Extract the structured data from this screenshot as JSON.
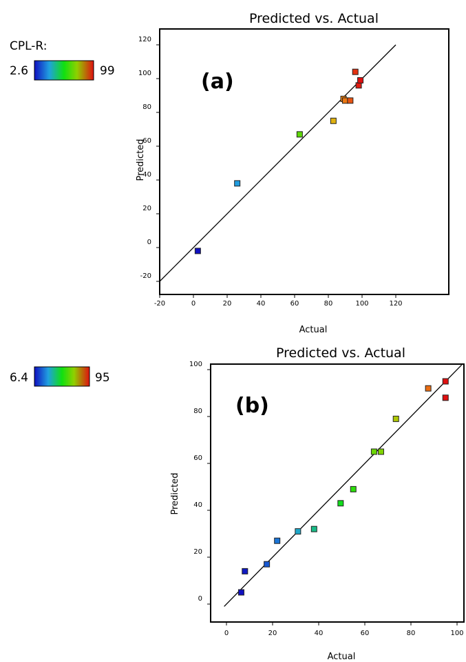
{
  "colorbars": [
    {
      "label": "CPL-R:",
      "min": "2.6",
      "max": "99"
    },
    {
      "label": "",
      "min": "6.4",
      "max": "95"
    }
  ],
  "chart_data": [
    {
      "type": "scatter",
      "title": "Predicted vs. Actual",
      "panel_label": "(a)",
      "xlabel": "Actual",
      "ylabel": "Predicted",
      "xlim": [
        -20,
        120
      ],
      "ylim": [
        -20,
        120
      ],
      "xticks": [
        "-20",
        "0",
        "20",
        "40",
        "60",
        "80",
        "100",
        "120"
      ],
      "yticks": [
        "-20",
        "0",
        "20",
        "40",
        "60",
        "80",
        "100",
        "120"
      ],
      "color_range": [
        2.6,
        99
      ],
      "reference_line": "y = x",
      "points": [
        {
          "x": 2.6,
          "y": -2
        },
        {
          "x": 26,
          "y": 38
        },
        {
          "x": 63,
          "y": 67
        },
        {
          "x": 83,
          "y": 75
        },
        {
          "x": 89,
          "y": 88
        },
        {
          "x": 90,
          "y": 87
        },
        {
          "x": 93,
          "y": 87
        },
        {
          "x": 96,
          "y": 104
        },
        {
          "x": 98,
          "y": 96
        },
        {
          "x": 99,
          "y": 99
        }
      ]
    },
    {
      "type": "scatter",
      "title": "Predicted vs. Actual",
      "panel_label": "(b)",
      "xlabel": "Actual",
      "ylabel": "Predicted",
      "xlim": [
        -1,
        103
      ],
      "ylim": [
        -3,
        102
      ],
      "xticks": [
        "0",
        "20",
        "40",
        "60",
        "80",
        "100"
      ],
      "yticks": [
        "0",
        "20",
        "40",
        "60",
        "80",
        "100"
      ],
      "color_range": [
        6.4,
        95
      ],
      "reference_line": "y = x",
      "points": [
        {
          "x": 6.4,
          "y": 5
        },
        {
          "x": 8,
          "y": 14
        },
        {
          "x": 17.5,
          "y": 17
        },
        {
          "x": 22,
          "y": 27
        },
        {
          "x": 31,
          "y": 31
        },
        {
          "x": 38,
          "y": 32
        },
        {
          "x": 49.5,
          "y": 43
        },
        {
          "x": 55,
          "y": 49
        },
        {
          "x": 64,
          "y": 65
        },
        {
          "x": 67,
          "y": 65
        },
        {
          "x": 73.5,
          "y": 79
        },
        {
          "x": 87.5,
          "y": 92
        },
        {
          "x": 95,
          "y": 95
        },
        {
          "x": 95,
          "y": 88
        }
      ]
    }
  ]
}
